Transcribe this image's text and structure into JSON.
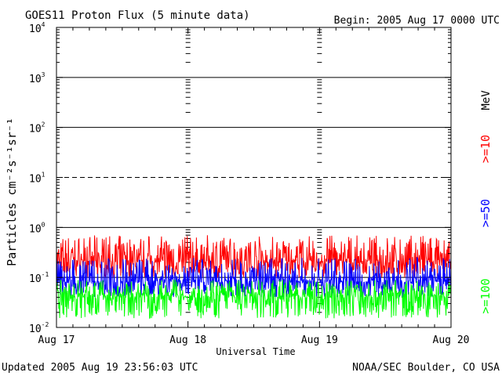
{
  "header": {
    "title": "GOES11 Proton Flux (5 minute data)",
    "begin": "Begin: 2005 Aug 17 0000 UTC"
  },
  "footer": {
    "updated": "Updated 2005 Aug 19 23:56:03 UTC",
    "source": "NOAA/SEC Boulder, CO USA"
  },
  "legend": {
    "unit": "MeV",
    "entries": [
      {
        "label": ">=10",
        "color": "#ff0000"
      },
      {
        "label": ">=50",
        "color": "#0000ff"
      },
      {
        "label": ">=100",
        "color": "#00ff00"
      }
    ]
  },
  "chart_data": {
    "type": "line",
    "title": "GOES11 Proton Flux (5 minute data)",
    "xlabel": "Universal Time",
    "ylabel": "Particles cm⁻²s⁻¹sr⁻¹",
    "yscale": "log",
    "ylim": [
      0.01,
      10000
    ],
    "ytick_values": [
      0.01,
      0.1,
      1,
      10,
      100,
      1000,
      10000
    ],
    "ytick_labels": [
      {
        "base": "10",
        "exp": "-2"
      },
      {
        "base": "10",
        "exp": "-1"
      },
      {
        "base": "10",
        "exp": "0"
      },
      {
        "base": "10",
        "exp": "1"
      },
      {
        "base": "10",
        "exp": "2"
      },
      {
        "base": "10",
        "exp": "3"
      },
      {
        "base": "10",
        "exp": "4"
      }
    ],
    "x_categories": [
      "Aug 17",
      "Aug 18",
      "Aug 19",
      "Aug 20"
    ],
    "xlim_days": [
      0,
      3
    ],
    "threshold_lines": [
      {
        "value": 10,
        "style": "dashed"
      },
      {
        "value": 1,
        "style": "solid"
      },
      {
        "value": 100,
        "style": "solid"
      },
      {
        "value": 1000,
        "style": "solid"
      },
      {
        "value": 0.1,
        "style": "solid"
      }
    ],
    "series": [
      {
        "name": ">=10",
        "color": "#ff0000",
        "median": 0.2,
        "low": 0.1,
        "high": 0.7
      },
      {
        "name": ">=50",
        "color": "#0000ff",
        "median": 0.08,
        "low": 0.04,
        "high": 0.25
      },
      {
        "name": ">=100",
        "color": "#00ff00",
        "median": 0.04,
        "low": 0.015,
        "high": 0.09
      }
    ]
  }
}
